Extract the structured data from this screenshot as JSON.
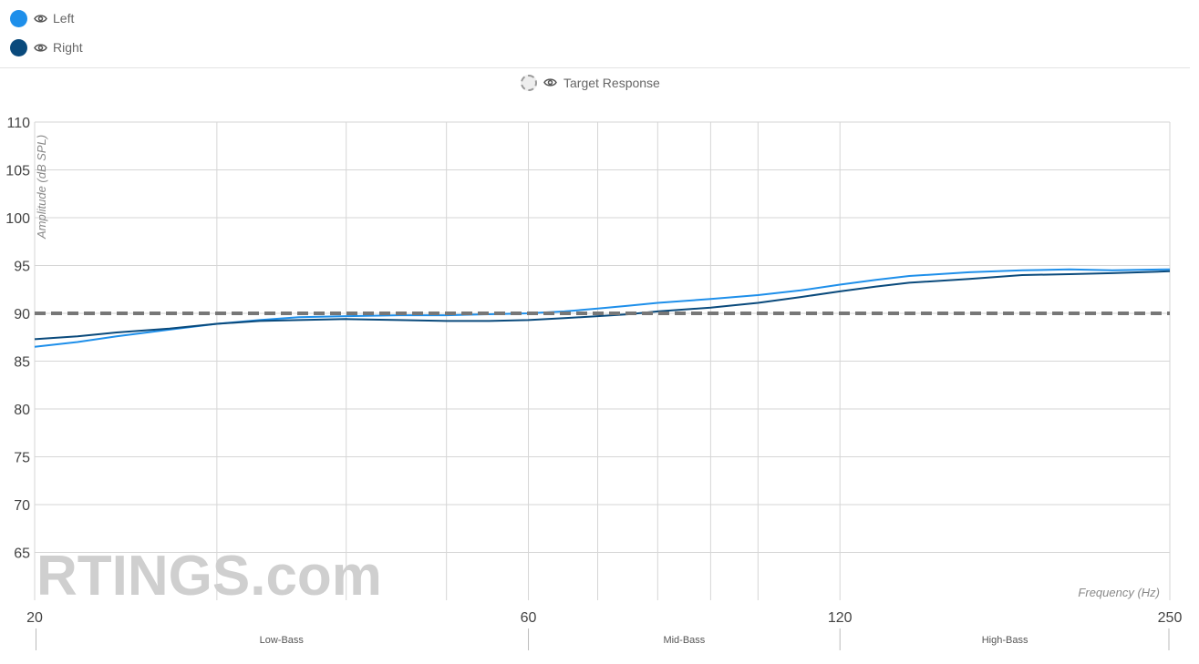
{
  "legend": {
    "items": [
      {
        "label": "Left",
        "color": "#1e8fea",
        "icon": "eye-icon"
      },
      {
        "label": "Right",
        "color": "#0a4a7c",
        "icon": "eye-icon"
      }
    ],
    "target": {
      "label": "Target Response",
      "icon": "eye-icon"
    }
  },
  "watermark": "RTINGS.com",
  "chart_data": {
    "type": "line",
    "xlabel": "Frequency (Hz)",
    "ylabel": "Amplitude (dB SPL)",
    "x_scale": "log",
    "xlim": [
      20,
      250
    ],
    "ylim": [
      60,
      110
    ],
    "y_ticks": [
      65,
      70,
      75,
      80,
      85,
      90,
      95,
      100,
      105,
      110
    ],
    "x_ticks": [
      20,
      60,
      120,
      250
    ],
    "x_gridlines": [
      20,
      30,
      40,
      50,
      60,
      70,
      80,
      90,
      100,
      120,
      250
    ],
    "grid": true,
    "bands": [
      {
        "label": "Low-Bass",
        "from": 20,
        "to": 60
      },
      {
        "label": "Mid-Bass",
        "from": 60,
        "to": 120
      },
      {
        "label": "High-Bass",
        "from": 120,
        "to": 250
      }
    ],
    "series": [
      {
        "name": "Left",
        "color": "#1e8fea",
        "points": [
          [
            20,
            86.5
          ],
          [
            22,
            87.0
          ],
          [
            24,
            87.6
          ],
          [
            27,
            88.3
          ],
          [
            30,
            88.9
          ],
          [
            33,
            89.3
          ],
          [
            36,
            89.6
          ],
          [
            40,
            89.7
          ],
          [
            45,
            89.8
          ],
          [
            50,
            89.8
          ],
          [
            55,
            89.9
          ],
          [
            60,
            90.0
          ],
          [
            65,
            90.2
          ],
          [
            70,
            90.5
          ],
          [
            75,
            90.8
          ],
          [
            80,
            91.1
          ],
          [
            90,
            91.5
          ],
          [
            100,
            91.9
          ],
          [
            110,
            92.4
          ],
          [
            120,
            93.0
          ],
          [
            130,
            93.5
          ],
          [
            140,
            93.9
          ],
          [
            160,
            94.3
          ],
          [
            180,
            94.5
          ],
          [
            200,
            94.6
          ],
          [
            220,
            94.5
          ],
          [
            250,
            94.6
          ]
        ]
      },
      {
        "name": "Right",
        "color": "#0a4a7c",
        "points": [
          [
            20,
            87.3
          ],
          [
            22,
            87.6
          ],
          [
            24,
            88.0
          ],
          [
            27,
            88.4
          ],
          [
            30,
            88.9
          ],
          [
            33,
            89.2
          ],
          [
            36,
            89.3
          ],
          [
            40,
            89.4
          ],
          [
            45,
            89.3
          ],
          [
            50,
            89.2
          ],
          [
            55,
            89.2
          ],
          [
            60,
            89.3
          ],
          [
            65,
            89.5
          ],
          [
            70,
            89.7
          ],
          [
            75,
            89.9
          ],
          [
            80,
            90.2
          ],
          [
            90,
            90.6
          ],
          [
            100,
            91.1
          ],
          [
            110,
            91.7
          ],
          [
            120,
            92.3
          ],
          [
            130,
            92.8
          ],
          [
            140,
            93.2
          ],
          [
            160,
            93.6
          ],
          [
            180,
            94.0
          ],
          [
            200,
            94.1
          ],
          [
            220,
            94.2
          ],
          [
            250,
            94.4
          ]
        ]
      },
      {
        "name": "Target Response",
        "color": "#777777",
        "dashed": true,
        "points": [
          [
            20,
            90
          ],
          [
            250,
            90
          ]
        ]
      }
    ]
  }
}
